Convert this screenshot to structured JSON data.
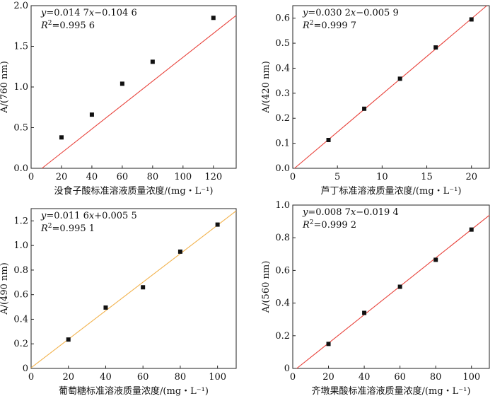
{
  "chart_data": [
    {
      "type": "scatter",
      "xlabel": "没食子酸标准溶液质量浓度/(mg・L⁻¹)",
      "ylabel": "A/(760 nm)",
      "equation": "y=0.014 7x−0.104 6",
      "r2": "R²=0.995 6",
      "x": [
        20,
        40,
        60,
        80,
        120
      ],
      "y": [
        0.38,
        0.66,
        1.04,
        1.31,
        1.85
      ],
      "fit": {
        "slope": 0.0147,
        "intercept": -0.1046
      },
      "xlim": [
        0,
        135
      ],
      "ylim": [
        0,
        2.0
      ],
      "xticks": [
        0,
        20,
        40,
        60,
        80,
        100,
        120
      ],
      "yticks": [
        0.0,
        0.5,
        1.0,
        1.5,
        2.0
      ],
      "xtick_labels": [
        "0",
        "20",
        "40",
        "60",
        "80",
        "100",
        "120"
      ],
      "ytick_labels": [
        "0.0",
        "0.5",
        "1.0",
        "1.5",
        "2.0"
      ],
      "line_color": "#e8413a",
      "marker_color": "#111111"
    },
    {
      "type": "scatter",
      "xlabel": "芦丁标准溶液质量浓度/(mg・L⁻¹)",
      "ylabel": "A/(420 nm)",
      "equation": "y=0.030 2x−0.005 9",
      "r2": "R²=0.999 7",
      "x": [
        4,
        8,
        12,
        16,
        20
      ],
      "y": [
        0.113,
        0.238,
        0.358,
        0.483,
        0.595
      ],
      "fit": {
        "slope": 0.0302,
        "intercept": -0.0059
      },
      "xlim": [
        0,
        22
      ],
      "ylim": [
        0,
        0.65
      ],
      "xticks": [
        0,
        5,
        10,
        15,
        20
      ],
      "yticks": [
        0.0,
        0.1,
        0.2,
        0.3,
        0.4,
        0.5,
        0.6
      ],
      "xtick_labels": [
        "0",
        "5",
        "10",
        "15",
        "20"
      ],
      "ytick_labels": [
        "0.0",
        "0.1",
        "0.2",
        "0.3",
        "0.4",
        "0.5",
        "0.6"
      ],
      "line_color": "#e8413a",
      "marker_color": "#111111"
    },
    {
      "type": "scatter",
      "xlabel": "葡萄糖标准溶液质量浓度/(mg・L⁻¹)",
      "ylabel": "A/(490 nm)",
      "equation": "y=0.011 6x+0.005 5",
      "r2": "R²=0.995 1",
      "x": [
        20,
        40,
        60,
        80,
        100
      ],
      "y": [
        0.235,
        0.495,
        0.66,
        0.95,
        1.17
      ],
      "fit": {
        "slope": 0.0116,
        "intercept": 0.0055
      },
      "xlim": [
        0,
        110
      ],
      "ylim": [
        0,
        1.3
      ],
      "xticks": [
        0,
        20,
        40,
        60,
        80,
        100
      ],
      "yticks": [
        0.0,
        0.2,
        0.4,
        0.6,
        0.8,
        1.0,
        1.2
      ],
      "xtick_labels": [
        "0",
        "20",
        "40",
        "60",
        "80",
        "100"
      ],
      "ytick_labels": [
        "0",
        "0.2",
        "0.4",
        "0.6",
        "0.8",
        "1.0",
        "1.2"
      ],
      "line_color": "#f2b24c",
      "marker_color": "#111111"
    },
    {
      "type": "scatter",
      "xlabel": "齐墩果酸标准溶液质量浓度/(mg・L⁻¹)",
      "ylabel": "A/(560 nm)",
      "equation": "y=0.008 7x−0.019 4",
      "r2": "R²=0.999 2",
      "x": [
        20,
        40,
        60,
        80,
        100
      ],
      "y": [
        0.15,
        0.34,
        0.5,
        0.665,
        0.85
      ],
      "fit": {
        "slope": 0.0087,
        "intercept": -0.0194
      },
      "xlim": [
        0,
        110
      ],
      "ylim": [
        0,
        1.0
      ],
      "xticks": [
        0,
        20,
        40,
        60,
        80,
        100
      ],
      "yticks": [
        0.0,
        0.2,
        0.4,
        0.6,
        0.8,
        1.0
      ],
      "xtick_labels": [
        "0",
        "20",
        "40",
        "60",
        "80",
        "100"
      ],
      "ytick_labels": [
        "0",
        "0.2",
        "0.4",
        "0.6",
        "0.8",
        "1.0"
      ],
      "line_color": "#e8413a",
      "marker_color": "#111111"
    }
  ]
}
